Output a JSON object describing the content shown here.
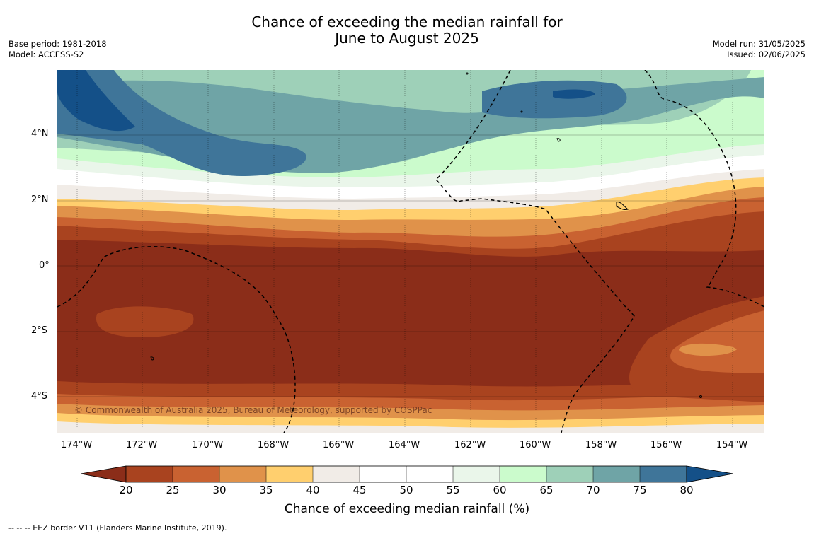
{
  "title": {
    "line1": "Chance of exceeding the median rainfall for",
    "line2": "June to August 2025"
  },
  "meta_left": {
    "base_period": "Base period: 1981-2018",
    "model": "Model: ACCESS-S2"
  },
  "meta_right": {
    "model_run": "Model run: 31/05/2025",
    "issued": "Issued: 02/06/2025"
  },
  "map": {
    "lon_labels": [
      "174°W",
      "172°W",
      "170°W",
      "168°W",
      "166°W",
      "164°W",
      "162°W",
      "160°W",
      "158°W",
      "156°W",
      "154°W"
    ],
    "lat_labels": [
      "4°N",
      "2°N",
      "0°",
      "2°S",
      "4°S"
    ],
    "copyright": "© Commonwealth of Australia 2025, Bureau of Meteorology, supported by COSPPac"
  },
  "colorbar": {
    "ticks": [
      "20",
      "25",
      "30",
      "35",
      "40",
      "45",
      "50",
      "55",
      "60",
      "65",
      "70",
      "75",
      "80"
    ],
    "label": "Chance of exceeding median rainfall (%)",
    "colors": {
      "under": "#8b2d19",
      "20-25": "#a9431f",
      "25-30": "#c96231",
      "30-35": "#e0924a",
      "35-40": "#ffcf6e",
      "40-45": "#f1ece7",
      "45-50": "#ffffff",
      "50-55": "#ffffff",
      "55-60": "#eaf6ea",
      "60-65": "#cbfbcc",
      "65-70": "#9ed0b8",
      "70-75": "#6fa4a6",
      "75-80": "#3f7599",
      "over": "#145088"
    }
  },
  "footnote": "--  --  -- EEZ border V11 (Flanders Marine Institute, 2019)."
}
